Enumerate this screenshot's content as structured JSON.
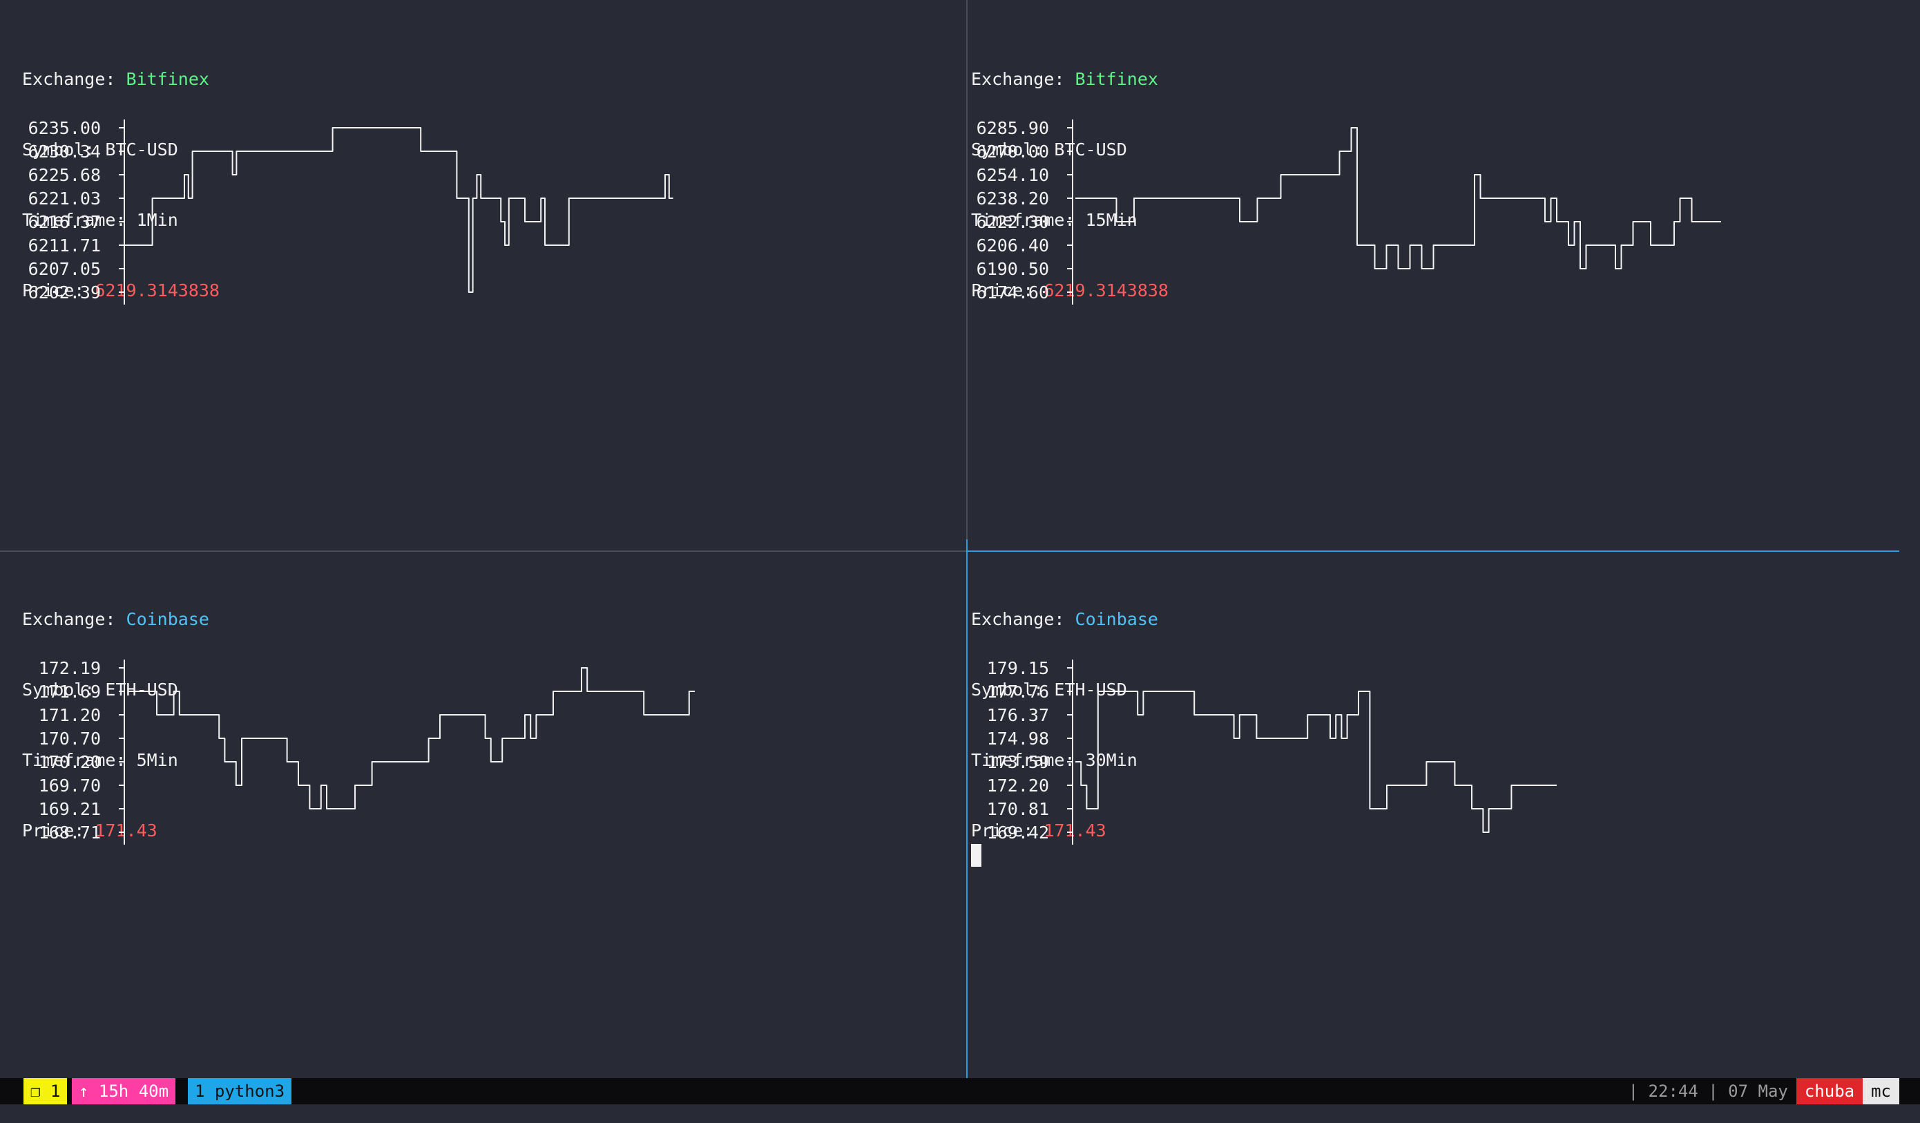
{
  "colors": {
    "background": "#282a36",
    "bitfinex": "#5ff287",
    "coinbase": "#4fc3f7",
    "price": "#ff5c5c",
    "active_border": "#2f9be0"
  },
  "labels": {
    "exchange": "Exchange: ",
    "symbol": "Symbol: ",
    "timeframe": "Timeframe: ",
    "price": "Price: "
  },
  "panes": [
    {
      "exchange": "Bitfinex",
      "symbol": "BTC-USD",
      "timeframe": "1Min",
      "price": "6219.3143838",
      "chart_data": {
        "type": "line",
        "y_ticks": [
          "6235.00",
          "6230.34",
          "6225.68",
          "6221.03",
          "6216.37",
          "6211.71",
          "6207.05",
          "6202.39"
        ],
        "y": [
          2,
          2,
          2,
          2,
          2,
          2,
          2,
          4,
          4,
          4,
          4,
          4,
          4,
          4,
          4,
          5,
          4,
          6,
          6,
          6,
          6,
          6,
          6,
          6,
          6,
          6,
          6,
          5,
          6,
          6,
          6,
          6,
          6,
          6,
          6,
          6,
          6,
          6,
          6,
          6,
          6,
          6,
          6,
          6,
          6,
          6,
          6,
          6,
          6,
          6,
          6,
          6,
          7,
          7,
          7,
          7,
          7,
          7,
          7,
          7,
          7,
          7,
          7,
          7,
          7,
          7,
          7,
          7,
          7,
          7,
          7,
          7,
          7,
          7,
          6,
          6,
          6,
          6,
          6,
          6,
          6,
          6,
          6,
          4,
          4,
          4,
          0,
          4,
          5,
          4,
          4,
          4,
          4,
          4,
          3,
          2,
          4,
          4,
          4,
          4,
          3,
          3,
          3,
          3,
          4,
          2,
          2,
          2,
          2,
          2,
          2,
          4,
          4,
          4,
          4,
          4,
          4,
          4,
          4,
          4,
          4,
          4,
          4,
          4,
          4,
          4,
          4,
          4,
          4,
          4,
          4,
          4,
          4,
          4,
          4,
          5,
          4
        ]
      }
    },
    {
      "exchange": "Bitfinex",
      "symbol": "BTC-USD",
      "timeframe": "15Min",
      "price": "6219.3143838",
      "chart_data": {
        "type": "line",
        "y_ticks": [
          "6285.90",
          "6270.00",
          "6254.10",
          "6238.20",
          "6222.30",
          "6206.40",
          "6190.50",
          "6174.60"
        ],
        "y": [
          4,
          4,
          4,
          4,
          4,
          4,
          4,
          3,
          3,
          3,
          4,
          4,
          4,
          4,
          4,
          4,
          4,
          4,
          4,
          4,
          4,
          4,
          4,
          4,
          4,
          4,
          4,
          4,
          3,
          3,
          3,
          4,
          4,
          4,
          4,
          5,
          5,
          5,
          5,
          5,
          5,
          5,
          5,
          5,
          5,
          6,
          6,
          7,
          2,
          2,
          2,
          1,
          1,
          2,
          2,
          1,
          1,
          2,
          2,
          1,
          1,
          2,
          2,
          2,
          2,
          2,
          2,
          2,
          5,
          4,
          4,
          4,
          4,
          4,
          4,
          4,
          4,
          4,
          4,
          4,
          3,
          4,
          3,
          3,
          2,
          3,
          1,
          2,
          2,
          2,
          2,
          2,
          1,
          2,
          2,
          3,
          3,
          3,
          2,
          2,
          2,
          2,
          3,
          4,
          4,
          3,
          3,
          3,
          3,
          3
        ]
      }
    },
    {
      "exchange": "Coinbase",
      "symbol": "ETH-USD",
      "timeframe": "5Min",
      "price": "171.43",
      "chart_data": {
        "type": "line",
        "y_ticks": [
          "172.19",
          "171.69",
          "171.20",
          "170.70",
          "170.20",
          "169.70",
          "169.21",
          "168.71"
        ],
        "y": [
          6,
          6,
          6,
          6,
          6,
          5,
          5,
          5,
          6,
          5,
          5,
          5,
          5,
          5,
          5,
          5,
          4,
          3,
          3,
          2,
          4,
          4,
          4,
          4,
          4,
          4,
          4,
          4,
          3,
          3,
          2,
          2,
          1,
          1,
          2,
          1,
          1,
          1,
          1,
          1,
          2,
          2,
          2,
          3,
          3,
          3,
          3,
          3,
          3,
          3,
          3,
          3,
          3,
          4,
          4,
          5,
          5,
          5,
          5,
          5,
          5,
          5,
          5,
          4,
          3,
          3,
          4,
          4,
          4,
          4,
          5,
          4,
          5,
          5,
          5,
          6,
          6,
          6,
          6,
          6,
          7,
          6,
          6,
          6,
          6,
          6,
          6,
          6,
          6,
          6,
          6,
          5,
          5,
          5,
          5,
          5,
          5,
          5,
          5,
          6
        ]
      }
    },
    {
      "exchange": "Coinbase",
      "symbol": "ETH-USD",
      "timeframe": "30Min",
      "price": "171.43",
      "chart_data": {
        "type": "line",
        "y_ticks": [
          "179.15",
          "177.76",
          "176.37",
          "174.98",
          "173.59",
          "172.20",
          "170.81",
          "169.42"
        ],
        "y": [
          3,
          2,
          1,
          1,
          6,
          6,
          6,
          6,
          6,
          6,
          6,
          5,
          6,
          6,
          6,
          6,
          6,
          6,
          6,
          6,
          6,
          5,
          5,
          5,
          5,
          5,
          5,
          5,
          4,
          5,
          5,
          5,
          4,
          4,
          4,
          4,
          4,
          4,
          4,
          4,
          4,
          5,
          5,
          5,
          5,
          4,
          5,
          4,
          5,
          5,
          6,
          6,
          1,
          1,
          1,
          2,
          2,
          2,
          2,
          2,
          2,
          2,
          3,
          3,
          3,
          3,
          3,
          2,
          2,
          2,
          1,
          1,
          0,
          1,
          1,
          1,
          1,
          2,
          2,
          2,
          2,
          2,
          2,
          2,
          2
        ]
      }
    }
  ],
  "statusbar": {
    "window": "❐ 1",
    "uptime": "↑ 15h 40m",
    "tab": "1 python3",
    "clock": "| 22:44 | 07 May",
    "user": "chuba",
    "host": "mc"
  }
}
